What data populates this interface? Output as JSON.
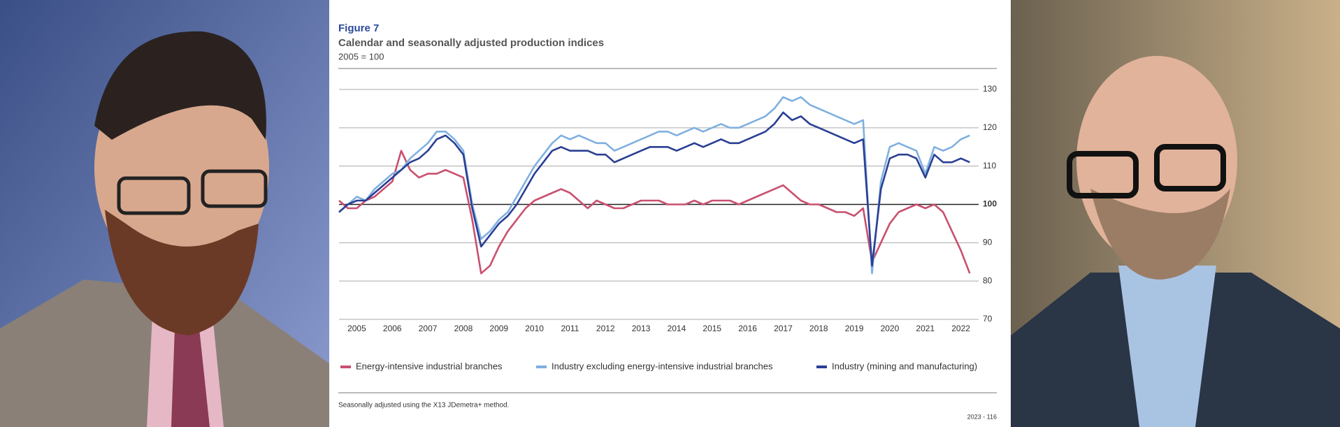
{
  "chart_data": {
    "type": "line",
    "figure_label": "Figure 7",
    "title": "Calendar and seasonally adjusted production indices",
    "subtitle": "2005 = 100",
    "note": "Seasonally adjusted using the  X13 JDemetra+ method.",
    "source": "2023 - 116",
    "x": [
      2005,
      2005.25,
      2005.5,
      2005.75,
      2006,
      2006.25,
      2006.5,
      2006.75,
      2007,
      2007.25,
      2007.5,
      2007.75,
      2008,
      2008.25,
      2008.5,
      2008.75,
      2009,
      2009.25,
      2009.5,
      2009.75,
      2010,
      2010.25,
      2010.5,
      2010.75,
      2011,
      2011.25,
      2011.5,
      2011.75,
      2012,
      2012.25,
      2012.5,
      2012.75,
      2013,
      2013.25,
      2013.5,
      2013.75,
      2014,
      2014.25,
      2014.5,
      2014.75,
      2015,
      2015.25,
      2015.5,
      2015.75,
      2016,
      2016.25,
      2016.5,
      2016.75,
      2017,
      2017.25,
      2017.5,
      2017.75,
      2018,
      2018.25,
      2018.5,
      2018.75,
      2019,
      2019.25,
      2019.5,
      2019.75,
      2020,
      2020.25,
      2020.5,
      2020.75,
      2021,
      2021.25,
      2021.5,
      2021.75,
      2022,
      2022.25,
      2022.5,
      2022.75
    ],
    "series": [
      {
        "name": "Energy-intensive industrial branches",
        "color": "#c9506f",
        "values": [
          101,
          99,
          99,
          101,
          102,
          104,
          106,
          114,
          109,
          107,
          108,
          108,
          109,
          108,
          107,
          96,
          82,
          84,
          89,
          93,
          96,
          99,
          101,
          102,
          103,
          104,
          103,
          101,
          99,
          101,
          100,
          99,
          99,
          100,
          101,
          101,
          101,
          100,
          100,
          100,
          101,
          100,
          101,
          101,
          101,
          100,
          101,
          102,
          103,
          104,
          105,
          103,
          101,
          100,
          100,
          99,
          98,
          98,
          97,
          99,
          85,
          90,
          95,
          98,
          99,
          100,
          99,
          100,
          98,
          93,
          88,
          82
        ]
      },
      {
        "name": "Industry excluding energy-intensive industrial branches",
        "color": "#7fb0e0",
        "values": [
          98,
          100,
          102,
          101,
          104,
          106,
          108,
          109,
          112,
          114,
          116,
          119,
          119,
          117,
          114,
          100,
          91,
          93,
          96,
          98,
          102,
          106,
          110,
          113,
          116,
          118,
          117,
          118,
          117,
          116,
          116,
          114,
          115,
          116,
          117,
          118,
          119,
          119,
          118,
          119,
          120,
          119,
          120,
          121,
          120,
          120,
          121,
          122,
          123,
          125,
          128,
          127,
          128,
          126,
          125,
          124,
          123,
          122,
          121,
          122,
          82,
          106,
          115,
          116,
          115,
          114,
          108,
          115,
          114,
          115,
          117,
          118
        ]
      },
      {
        "name": "Industry (mining and manufacturing)",
        "color": "#2a3f94",
        "values": [
          98,
          100,
          101,
          101,
          103,
          105,
          107,
          109,
          111,
          112,
          114,
          117,
          118,
          116,
          113,
          99,
          89,
          92,
          95,
          97,
          100,
          104,
          108,
          111,
          114,
          115,
          114,
          114,
          114,
          113,
          113,
          111,
          112,
          113,
          114,
          115,
          115,
          115,
          114,
          115,
          116,
          115,
          116,
          117,
          116,
          116,
          117,
          118,
          119,
          121,
          124,
          122,
          123,
          121,
          120,
          119,
          118,
          117,
          116,
          117,
          84,
          104,
          112,
          113,
          113,
          112,
          107,
          113,
          111,
          111,
          112,
          111
        ]
      }
    ],
    "xlim": [
      2005,
      2023
    ],
    "xticks": [
      {
        "value": 2005.5,
        "label": "2005"
      },
      {
        "value": 2006.5,
        "label": "2006"
      },
      {
        "value": 2007.5,
        "label": "2007"
      },
      {
        "value": 2008.5,
        "label": "2008"
      },
      {
        "value": 2009.5,
        "label": "2009"
      },
      {
        "value": 2010.5,
        "label": "2010"
      },
      {
        "value": 2011.5,
        "label": "2011"
      },
      {
        "value": 2012.5,
        "label": "2012"
      },
      {
        "value": 2013.5,
        "label": "2013"
      },
      {
        "value": 2014.5,
        "label": "2014"
      },
      {
        "value": 2015.5,
        "label": "2015"
      },
      {
        "value": 2016.5,
        "label": "2016"
      },
      {
        "value": 2017.5,
        "label": "2017"
      },
      {
        "value": 2018.5,
        "label": "2018"
      },
      {
        "value": 2019.5,
        "label": "2019"
      },
      {
        "value": 2020.5,
        "label": "2020"
      },
      {
        "value": 2021.5,
        "label": "2021"
      },
      {
        "value": 2022.5,
        "label": "2022"
      }
    ],
    "ylim": [
      70,
      130
    ],
    "yticks": [
      70,
      80,
      90,
      100,
      110,
      120,
      130
    ],
    "highlight_tick": 100,
    "grid": true,
    "legend": "bottom"
  }
}
